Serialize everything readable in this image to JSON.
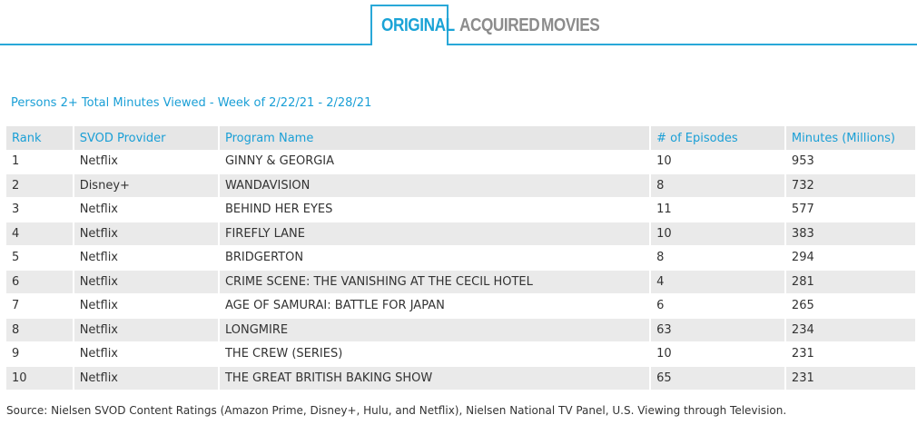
{
  "tabs": [
    {
      "label": "ORIGINAL",
      "active": true
    },
    {
      "label": "ACQUIRED",
      "active": false
    },
    {
      "label": "MOVIES",
      "active": false
    }
  ],
  "subtitle": "Persons 2+ Total Minutes Viewed - Week of 2/22/21 - 2/28/21",
  "table": {
    "headers": [
      "Rank",
      "SVOD Provider",
      "Program Name",
      "# of Episodes",
      "Minutes (Millions)"
    ],
    "rows": [
      [
        "1",
        "Netflix",
        "GINNY & GEORGIA",
        "10",
        "953"
      ],
      [
        "2",
        "Disney+",
        "WANDAVISION",
        "8",
        "732"
      ],
      [
        "3",
        "Netflix",
        "BEHIND HER EYES",
        "11",
        "577"
      ],
      [
        "4",
        "Netflix",
        "FIREFLY LANE",
        "10",
        "383"
      ],
      [
        "5",
        "Netflix",
        "BRIDGERTON",
        "8",
        "294"
      ],
      [
        "6",
        "Netflix",
        "CRIME SCENE: THE VANISHING AT THE CECIL HOTEL",
        "4",
        "281"
      ],
      [
        "7",
        "Netflix",
        "AGE OF SAMURAI: BATTLE FOR JAPAN",
        "6",
        "265"
      ],
      [
        "8",
        "Netflix",
        "LONGMIRE",
        "63",
        "234"
      ],
      [
        "9",
        "Netflix",
        "THE CREW (SERIES)",
        "10",
        "231"
      ],
      [
        "10",
        "Netflix",
        "THE GREAT BRITISH BAKING SHOW",
        "65",
        "231"
      ]
    ]
  },
  "source": "Source: Nielsen SVOD Content Ratings (Amazon Prime, Disney+, Hulu, and Netflix), Nielsen National TV Panel, U.S. Viewing through Television.",
  "colors": {
    "accent": "#1aa3d6",
    "tab_inactive": "#8c8c8c",
    "row_shade": "#eaeaea"
  }
}
